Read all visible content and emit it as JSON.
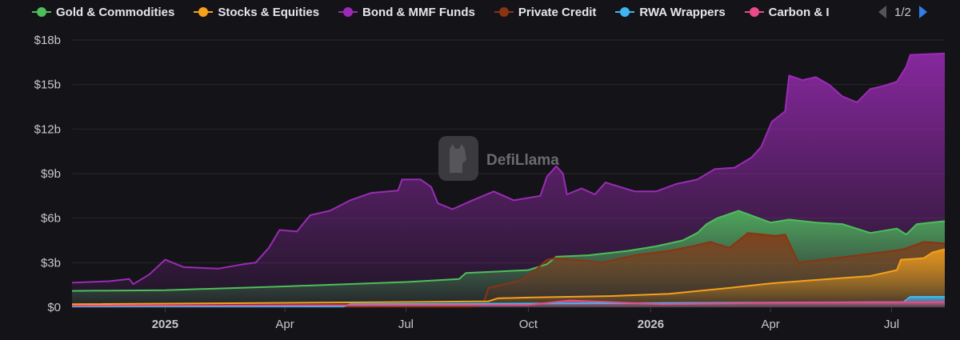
{
  "legend": {
    "items": [
      {
        "label": "Gold & Commodities",
        "color": "#4cbf5a"
      },
      {
        "label": "Stocks & Equities",
        "color": "#f5a11c"
      },
      {
        "label": "Bond & MMF Funds",
        "color": "#9b2bb5"
      },
      {
        "label": "Private Credit",
        "color": "#8a3413"
      },
      {
        "label": "RWA Wrappers",
        "color": "#3fb6f0"
      },
      {
        "label": "Carbon & I",
        "color": "#e84a8a"
      }
    ],
    "page": "1/2"
  },
  "watermark": "DefiLlama",
  "chart_data": {
    "type": "area",
    "x_ticks": [
      {
        "label": "2025",
        "date": "2025-01-01",
        "bold": true
      },
      {
        "label": "Apr",
        "date": "2025-04-01",
        "bold": false
      },
      {
        "label": "Jul",
        "date": "2025-07-01",
        "bold": false
      },
      {
        "label": "Oct",
        "date": "2025-10-01",
        "bold": false
      },
      {
        "label": "2026",
        "date": "2026-01-01",
        "bold": true
      },
      {
        "label": "Apr",
        "date": "2026-04-01",
        "bold": false
      },
      {
        "label": "Jul",
        "date": "2026-07-01",
        "bold": false
      }
    ],
    "x_range": [
      "2024-10-23",
      "2026-08-10"
    ],
    "y_ticks": [
      "$0",
      "$3b",
      "$6b",
      "$9b",
      "$12b",
      "$15b",
      "$18b"
    ],
    "ylim": [
      0,
      18
    ],
    "y_unit": "billion USD",
    "grid": true,
    "legend_position": "top",
    "series": [
      {
        "name": "Bond & MMF Funds",
        "color": "#9b2bb5",
        "points": [
          [
            "2024-10-23",
            1.65
          ],
          [
            "2024-11-20",
            1.75
          ],
          [
            "2024-12-05",
            1.9
          ],
          [
            "2024-12-08",
            1.55
          ],
          [
            "2024-12-20",
            2.2
          ],
          [
            "2025-01-01",
            3.2
          ],
          [
            "2025-01-15",
            2.7
          ],
          [
            "2025-02-10",
            2.6
          ],
          [
            "2025-03-01",
            2.9
          ],
          [
            "2025-03-10",
            3.0
          ],
          [
            "2025-03-20",
            4.0
          ],
          [
            "2025-03-28",
            5.2
          ],
          [
            "2025-04-10",
            5.1
          ],
          [
            "2025-04-20",
            6.2
          ],
          [
            "2025-05-05",
            6.5
          ],
          [
            "2025-05-20",
            7.2
          ],
          [
            "2025-06-05",
            7.7
          ],
          [
            "2025-06-25",
            7.85
          ],
          [
            "2025-06-28",
            8.6
          ],
          [
            "2025-07-12",
            8.6
          ],
          [
            "2025-07-20",
            8.1
          ],
          [
            "2025-07-25",
            7.0
          ],
          [
            "2025-08-05",
            6.6
          ],
          [
            "2025-08-20",
            7.2
          ],
          [
            "2025-09-05",
            7.8
          ],
          [
            "2025-09-20",
            7.2
          ],
          [
            "2025-10-10",
            7.5
          ],
          [
            "2025-10-15",
            8.8
          ],
          [
            "2025-10-22",
            9.5
          ],
          [
            "2025-10-27",
            9.0
          ],
          [
            "2025-10-30",
            7.6
          ],
          [
            "2025-11-10",
            8.0
          ],
          [
            "2025-11-20",
            7.6
          ],
          [
            "2025-11-28",
            8.4
          ],
          [
            "2025-12-20",
            7.8
          ],
          [
            "2026-01-05",
            7.8
          ],
          [
            "2026-01-20",
            8.3
          ],
          [
            "2026-02-05",
            8.6
          ],
          [
            "2026-02-18",
            9.3
          ],
          [
            "2026-03-05",
            9.4
          ],
          [
            "2026-03-18",
            10.1
          ],
          [
            "2026-03-25",
            10.8
          ],
          [
            "2026-04-02",
            12.5
          ],
          [
            "2026-04-12",
            13.2
          ],
          [
            "2026-04-15",
            15.6
          ],
          [
            "2026-04-25",
            15.3
          ],
          [
            "2026-05-05",
            15.5
          ],
          [
            "2026-05-15",
            15.0
          ],
          [
            "2026-05-25",
            14.2
          ],
          [
            "2026-06-05",
            13.8
          ],
          [
            "2026-06-15",
            14.7
          ],
          [
            "2026-06-25",
            14.9
          ],
          [
            "2026-07-05",
            15.2
          ],
          [
            "2026-07-12",
            16.2
          ],
          [
            "2026-07-15",
            17.0
          ],
          [
            "2026-08-10",
            17.1
          ]
        ]
      },
      {
        "name": "Gold & Commodities",
        "color": "#4cbf5a",
        "points": [
          [
            "2024-10-23",
            1.1
          ],
          [
            "2025-01-01",
            1.15
          ],
          [
            "2025-04-01",
            1.4
          ],
          [
            "2025-07-01",
            1.7
          ],
          [
            "2025-08-10",
            1.9
          ],
          [
            "2025-08-15",
            2.3
          ],
          [
            "2025-10-01",
            2.5
          ],
          [
            "2025-10-15",
            2.9
          ],
          [
            "2025-10-22",
            3.4
          ],
          [
            "2025-11-15",
            3.5
          ],
          [
            "2025-12-15",
            3.8
          ],
          [
            "2026-01-05",
            4.1
          ],
          [
            "2026-01-25",
            4.5
          ],
          [
            "2026-02-05",
            5.0
          ],
          [
            "2026-02-12",
            5.6
          ],
          [
            "2026-02-20",
            6.0
          ],
          [
            "2026-03-08",
            6.5
          ],
          [
            "2026-03-20",
            6.1
          ],
          [
            "2026-04-01",
            5.7
          ],
          [
            "2026-04-15",
            5.9
          ],
          [
            "2026-05-05",
            5.7
          ],
          [
            "2026-05-25",
            5.6
          ],
          [
            "2026-06-15",
            5.0
          ],
          [
            "2026-07-05",
            5.3
          ],
          [
            "2026-07-12",
            4.9
          ],
          [
            "2026-07-20",
            5.6
          ],
          [
            "2026-08-10",
            5.8
          ]
        ]
      },
      {
        "name": "Private Credit",
        "color": "#8a3413",
        "points": [
          [
            "2024-10-23",
            0.05
          ],
          [
            "2025-08-20",
            0.05
          ],
          [
            "2025-08-28",
            0.2
          ],
          [
            "2025-09-01",
            1.3
          ],
          [
            "2025-09-25",
            1.8
          ],
          [
            "2025-10-05",
            2.4
          ],
          [
            "2025-10-15",
            3.2
          ],
          [
            "2025-10-22",
            3.3
          ],
          [
            "2025-11-05",
            3.2
          ],
          [
            "2025-11-25",
            3.0
          ],
          [
            "2025-12-20",
            3.5
          ],
          [
            "2026-01-15",
            3.8
          ],
          [
            "2026-02-01",
            4.1
          ],
          [
            "2026-02-15",
            4.4
          ],
          [
            "2026-03-01",
            4.0
          ],
          [
            "2026-03-15",
            5.0
          ],
          [
            "2026-04-05",
            4.8
          ],
          [
            "2026-04-12",
            4.9
          ],
          [
            "2026-04-22",
            3.0
          ],
          [
            "2026-05-10",
            3.2
          ],
          [
            "2026-06-15",
            3.6
          ],
          [
            "2026-07-10",
            3.9
          ],
          [
            "2026-07-25",
            4.4
          ],
          [
            "2026-08-10",
            4.3
          ]
        ]
      },
      {
        "name": "Stocks & Equities",
        "color": "#f5a11c",
        "points": [
          [
            "2024-10-23",
            0.2
          ],
          [
            "2025-07-01",
            0.35
          ],
          [
            "2025-09-01",
            0.4
          ],
          [
            "2025-09-08",
            0.6
          ],
          [
            "2025-10-01",
            0.65
          ],
          [
            "2025-12-01",
            0.75
          ],
          [
            "2026-01-15",
            0.9
          ],
          [
            "2026-03-01",
            1.3
          ],
          [
            "2026-04-01",
            1.6
          ],
          [
            "2026-05-15",
            1.9
          ],
          [
            "2026-06-15",
            2.1
          ],
          [
            "2026-07-05",
            2.5
          ],
          [
            "2026-07-08",
            3.2
          ],
          [
            "2026-07-25",
            3.3
          ],
          [
            "2026-08-01",
            3.7
          ],
          [
            "2026-08-10",
            3.9
          ]
        ]
      },
      {
        "name": "RWA Wrappers",
        "color": "#3fb6f0",
        "points": [
          [
            "2024-10-23",
            0.05
          ],
          [
            "2025-05-15",
            0.05
          ],
          [
            "2025-05-20",
            0.2
          ],
          [
            "2025-10-01",
            0.25
          ],
          [
            "2026-07-10",
            0.35
          ],
          [
            "2026-07-15",
            0.7
          ],
          [
            "2026-08-10",
            0.7
          ]
        ]
      },
      {
        "name": "Carbon & I",
        "color": "#e84a8a",
        "points": [
          [
            "2024-10-23",
            0.1
          ],
          [
            "2025-10-01",
            0.15
          ],
          [
            "2025-11-01",
            0.45
          ],
          [
            "2026-01-10",
            0.2
          ],
          [
            "2026-04-01",
            0.3
          ],
          [
            "2026-08-10",
            0.35
          ]
        ]
      }
    ]
  }
}
